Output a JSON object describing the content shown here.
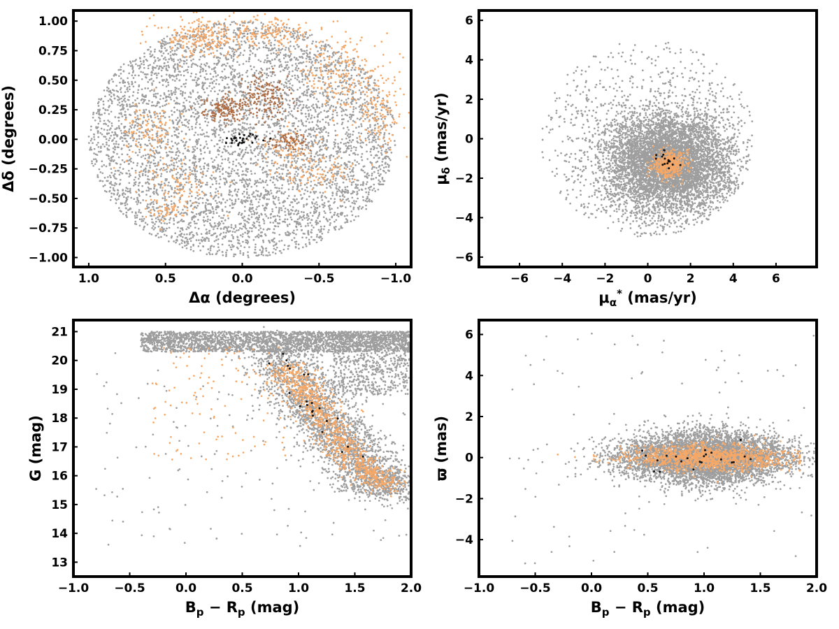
{
  "colors": {
    "field": "#9e9e9e",
    "members": "#f5a867",
    "dense_members": "#b06e45",
    "core": "#111111"
  },
  "chart_data": [
    {
      "type": "scatter",
      "panel": "sky",
      "title": "",
      "xlabel": "Δα (degrees)",
      "ylabel": "Δδ (degrees)",
      "xlim": [
        1.1,
        -1.1
      ],
      "ylim": [
        -1.08,
        1.09
      ],
      "x_inverted": true,
      "xticks": [
        1.0,
        0.5,
        0.0,
        -0.5,
        -1.0
      ],
      "xtick_labels": [
        "1.0",
        "0.5",
        "0.0",
        "−0.5",
        "−1.0"
      ],
      "yticks": [
        -1.0,
        -0.75,
        -0.5,
        -0.25,
        0.0,
        0.25,
        0.5,
        0.75,
        1.0
      ],
      "ytick_labels": [
        "−1.00",
        "−0.75",
        "−0.50",
        "−0.25",
        "0.00",
        "0.25",
        "0.50",
        "0.75",
        "1.00"
      ],
      "series": [
        {
          "role": "field",
          "color": "#9e9e9e",
          "count": 5200,
          "shape": "disk",
          "center": [
            0,
            0
          ],
          "radius": 1.0
        },
        {
          "role": "members",
          "color": "#f5a867",
          "count": 1050,
          "clumps": [
            {
              "center": [
                0.27,
                0.87
              ],
              "sigma": [
                0.16,
                0.08
              ],
              "count": 220
            },
            {
              "center": [
                -0.2,
                0.9
              ],
              "sigma": [
                0.14,
                0.06
              ],
              "count": 140
            },
            {
              "center": [
                -0.65,
                0.55
              ],
              "sigma": [
                0.15,
                0.15
              ],
              "count": 200
            },
            {
              "center": [
                -0.9,
                0.2
              ],
              "sigma": [
                0.07,
                0.15
              ],
              "count": 110
            },
            {
              "center": [
                0.6,
                0.05
              ],
              "sigma": [
                0.09,
                0.14
              ],
              "count": 110
            },
            {
              "center": [
                0.38,
                -0.4
              ],
              "sigma": [
                0.12,
                0.1
              ],
              "count": 80
            },
            {
              "center": [
                0.5,
                -0.6
              ],
              "sigma": [
                0.05,
                0.05
              ],
              "count": 40
            },
            {
              "center": [
                -0.3,
                -0.1
              ],
              "sigma": [
                0.1,
                0.1
              ],
              "count": 80
            },
            {
              "center": [
                -0.5,
                -0.3
              ],
              "sigma": [
                0.1,
                0.08
              ],
              "count": 70
            }
          ]
        },
        {
          "role": "dense_members",
          "color": "#b06e45",
          "count": 360,
          "clumps": [
            {
              "center": [
                0.12,
                0.25
              ],
              "sigma": [
                0.07,
                0.05
              ],
              "count": 140
            },
            {
              "center": [
                -0.15,
                0.35
              ],
              "sigma": [
                0.08,
                0.09
              ],
              "count": 150
            },
            {
              "center": [
                -0.3,
                -0.02
              ],
              "sigma": [
                0.08,
                0.04
              ],
              "count": 70
            }
          ]
        },
        {
          "role": "core",
          "color": "#111111",
          "count": 30,
          "clumps": [
            {
              "center": [
                0.0,
                0.0
              ],
              "sigma": [
                0.06,
                0.025
              ],
              "count": 30
            }
          ]
        }
      ]
    },
    {
      "type": "scatter",
      "panel": "proper_motion",
      "title": "",
      "xlabel": "μ_α* (mas/yr)",
      "ylabel": "μ_δ (mas/yr)",
      "xlim": [
        -7.9,
        7.9
      ],
      "ylim": [
        -6.5,
        6.5
      ],
      "xticks": [
        -6,
        -4,
        -2,
        0,
        2,
        4,
        6
      ],
      "xtick_labels": [
        "−6",
        "−4",
        "−2",
        "0",
        "2",
        "4",
        "6"
      ],
      "yticks": [
        -6,
        -4,
        -2,
        0,
        2,
        4,
        6
      ],
      "ytick_labels": [
        "−6",
        "−4",
        "−2",
        "0",
        "2",
        "4",
        "6"
      ],
      "series": [
        {
          "role": "field",
          "color": "#9e9e9e",
          "count": 5600,
          "shape": "gaussian-in-circle",
          "center": [
            1.0,
            -1.2
          ],
          "sigma": [
            1.5,
            1.3
          ],
          "clip_center": [
            0,
            0
          ],
          "clip_radius": 5.0
        },
        {
          "role": "field_halo",
          "color": "#9e9e9e",
          "count": 700,
          "shape": "disk",
          "center": [
            0,
            0
          ],
          "radius": 5.0
        },
        {
          "role": "members",
          "color": "#f5a867",
          "count": 420,
          "clumps": [
            {
              "center": [
                1.0,
                -1.3
              ],
              "sigma": [
                0.38,
                0.32
              ],
              "count": 420
            }
          ]
        },
        {
          "role": "core",
          "color": "#111111",
          "count": 18,
          "clumps": [
            {
              "center": [
                1.0,
                -1.1
              ],
              "sigma": [
                0.3,
                0.35
              ],
              "count": 18
            }
          ]
        }
      ]
    },
    {
      "type": "scatter",
      "panel": "cmd",
      "title": "",
      "xlabel": "B_p − R_p (mag)",
      "ylabel": "G (mag)",
      "xlim": [
        -1.0,
        2.0
      ],
      "ylim": [
        12.5,
        21.4
      ],
      "xticks": [
        -1.0,
        -0.5,
        0.0,
        0.5,
        1.0,
        1.5,
        2.0
      ],
      "xtick_labels": [
        "−1.0",
        "−0.5",
        "0.0",
        "0.5",
        "1.0",
        "1.5",
        "2.0"
      ],
      "yticks": [
        13,
        14,
        15,
        16,
        17,
        18,
        19,
        20,
        21
      ],
      "ytick_labels": [
        "13",
        "14",
        "15",
        "16",
        "17",
        "18",
        "19",
        "20",
        "21"
      ],
      "series": [
        {
          "role": "field_faint_band",
          "color": "#9e9e9e",
          "count": 2400,
          "x_range": [
            -0.4,
            2.0
          ],
          "y_range": [
            20.3,
            21.0
          ]
        },
        {
          "role": "field_sequence",
          "color": "#9e9e9e",
          "count": 2600,
          "sequence": [
            [
              0.8,
              20.5
            ],
            [
              1.0,
              19.0
            ],
            [
              1.2,
              18.0
            ],
            [
              1.45,
              17.0
            ],
            [
              1.65,
              16.0
            ],
            [
              1.8,
              15.5
            ]
          ],
          "spread": 0.18
        },
        {
          "role": "field_red_wing",
          "color": "#9e9e9e",
          "count": 700,
          "x_range": [
            1.3,
            2.0
          ],
          "y_range": [
            18.8,
            21.0
          ]
        },
        {
          "role": "field_scatter",
          "color": "#9e9e9e",
          "count": 160,
          "x_range": [
            -0.8,
            2.0
          ],
          "y_range": [
            13.5,
            20.3
          ]
        },
        {
          "role": "members",
          "color": "#f5a867",
          "count": 900,
          "sequence": [
            [
              0.9,
              19.8
            ],
            [
              1.05,
              19.0
            ],
            [
              1.2,
              18.0
            ],
            [
              1.4,
              17.0
            ],
            [
              1.6,
              16.2
            ],
            [
              1.8,
              15.6
            ]
          ],
          "spread": 0.1
        },
        {
          "role": "members_scatter",
          "color": "#f5a867",
          "count": 120,
          "x_range": [
            -0.3,
            0.9
          ],
          "y_range": [
            16.5,
            20.5
          ]
        },
        {
          "role": "core",
          "color": "#111111",
          "count": 22,
          "sequence": [
            [
              0.9,
              20.4
            ],
            [
              1.0,
              19.0
            ],
            [
              1.2,
              18.0
            ],
            [
              1.6,
              16.3
            ]
          ],
          "spread": 0.08
        }
      ]
    },
    {
      "type": "scatter",
      "panel": "parallax",
      "title": "",
      "xlabel": "B_p − R_p (mag)",
      "ylabel": "ϖ (mas)",
      "xlim": [
        -1.0,
        2.0
      ],
      "ylim": [
        -5.8,
        6.7
      ],
      "xticks": [
        -1.0,
        -0.5,
        0.0,
        0.5,
        1.0,
        1.5,
        2.0
      ],
      "xtick_labels": [
        "−1.0",
        "−0.5",
        "0.0",
        "0.5",
        "1.0",
        "1.5",
        "2.0"
      ],
      "yticks": [
        -4,
        -2,
        0,
        2,
        4,
        6
      ],
      "ytick_labels": [
        "−4",
        "−2",
        "0",
        "2",
        "4",
        "6"
      ],
      "series": [
        {
          "role": "field",
          "color": "#9e9e9e",
          "count": 5200,
          "x_center": 1.0,
          "x_sigma": 0.38,
          "x_range": [
            -0.6,
            2.0
          ],
          "y_center": 0.0,
          "y_sigma": 0.7
        },
        {
          "role": "field_outliers",
          "color": "#9e9e9e",
          "count": 90,
          "x_range": [
            -0.8,
            2.0
          ],
          "y_range": [
            -5.4,
            6.1
          ]
        },
        {
          "role": "members",
          "color": "#f5a867",
          "count": 1100,
          "x_center": 1.05,
          "x_sigma": 0.35,
          "x_range": [
            -0.3,
            1.85
          ],
          "y_center": 0.0,
          "y_sigma": 0.35
        },
        {
          "role": "core",
          "color": "#111111",
          "count": 22,
          "x_center": 0.95,
          "x_sigma": 0.3,
          "x_range": [
            -0.2,
            1.6
          ],
          "y_center": 0.0,
          "y_sigma": 0.35
        }
      ]
    }
  ]
}
